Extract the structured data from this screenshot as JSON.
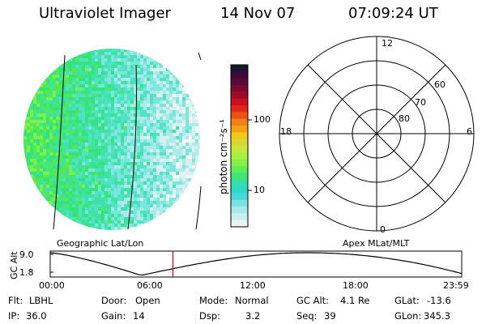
{
  "header": {
    "instrument": "Ultraviolet Imager",
    "date": "14 Nov 07",
    "time": "07:09:24 UT"
  },
  "colorbar": {
    "unit_label": "photon cm⁻²s⁻¹",
    "tick_labels": [
      "100",
      "10"
    ],
    "colors": [
      "#1a1433",
      "#3a0b3a",
      "#5a0a3a",
      "#7a0a30",
      "#a00a28",
      "#c8101e",
      "#e02818",
      "#ee5016",
      "#f08018",
      "#f4a012",
      "#f4c81a",
      "#d8d834",
      "#c4e840",
      "#a8f040",
      "#88f048",
      "#5cee54",
      "#3ee678",
      "#34e0a8",
      "#30d8c8",
      "#48d8d8",
      "#7ae0e0",
      "#a8e8e8",
      "#cceeee",
      "#e6f4f4"
    ]
  },
  "image_panel": {
    "caption": "Geographic Lat/Lon"
  },
  "polar_panel": {
    "caption": "Apex MLat/MLT",
    "mlt_labels": {
      "top": "12",
      "left": "18",
      "right": "6",
      "bottom": "0"
    },
    "lat_labels": [
      "60",
      "70",
      "80"
    ]
  },
  "altitude_plot": {
    "ylabel": "GC Alt",
    "y_ticks": [
      "9.0",
      "1.8"
    ],
    "x_ticks": [
      "00:00",
      "06:00",
      "12:00",
      "18:00",
      "23:59"
    ],
    "marker_time_hours": 7.16,
    "marker_color": "#e00000"
  },
  "status": {
    "row1": [
      {
        "key": "Flt:",
        "value": "LBHL"
      },
      {
        "key": "Door:",
        "value": "Open"
      },
      {
        "key": "Mode:",
        "value": "Normal"
      },
      {
        "key": "GC Alt:",
        "value": "4.1 Re"
      },
      {
        "key": "GLat:",
        "value": "-13.6"
      }
    ],
    "row2": [
      {
        "key": "IP:",
        "value": "36.0"
      },
      {
        "key": "Gain:",
        "value": "14"
      },
      {
        "key": "Dsp:",
        "value": "3.2"
      },
      {
        "key": "Seq:",
        "value": "39"
      },
      {
        "key": "GLon:",
        "value": "345.3"
      }
    ]
  }
}
